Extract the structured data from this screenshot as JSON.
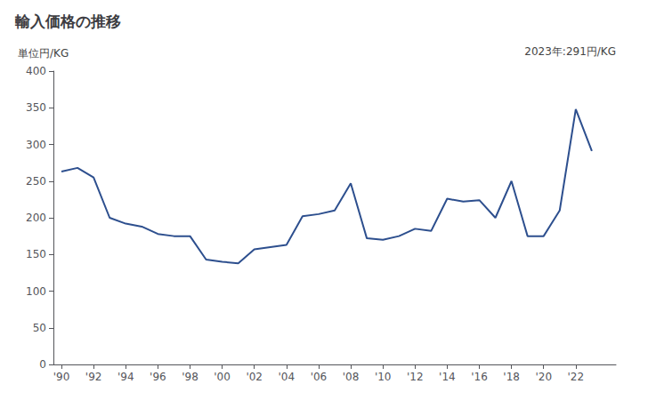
{
  "chart_data": {
    "type": "line",
    "title": "輸入価格の推移",
    "ylabel": "単位円/KG",
    "annotation": "2023年:291円/KG",
    "color": "#2d4f8e",
    "x": [
      1990,
      1991,
      1992,
      1993,
      1994,
      1995,
      1996,
      1997,
      1998,
      1999,
      2000,
      2001,
      2002,
      2003,
      2004,
      2005,
      2006,
      2007,
      2008,
      2009,
      2010,
      2011,
      2012,
      2013,
      2014,
      2015,
      2016,
      2017,
      2018,
      2019,
      2020,
      2021,
      2022,
      2023
    ],
    "values": [
      263,
      268,
      255,
      200,
      192,
      188,
      178,
      175,
      175,
      143,
      140,
      138,
      157,
      160,
      163,
      202,
      205,
      210,
      247,
      172,
      170,
      175,
      185,
      182,
      226,
      222,
      224,
      200,
      250,
      175,
      175,
      210,
      348,
      291
    ],
    "xlim": [
      1989.5,
      2024.5
    ],
    "xticks": [
      {
        "value": 1990,
        "label": "'90"
      },
      {
        "value": 1992,
        "label": "'92"
      },
      {
        "value": 1994,
        "label": "'94"
      },
      {
        "value": 1996,
        "label": "'96"
      },
      {
        "value": 1998,
        "label": "'98"
      },
      {
        "value": 2000,
        "label": "'00"
      },
      {
        "value": 2002,
        "label": "'02"
      },
      {
        "value": 2004,
        "label": "'04"
      },
      {
        "value": 2006,
        "label": "'06"
      },
      {
        "value": 2008,
        "label": "'08"
      },
      {
        "value": 2010,
        "label": "'10"
      },
      {
        "value": 2012,
        "label": "'12"
      },
      {
        "value": 2014,
        "label": "'14"
      },
      {
        "value": 2016,
        "label": "'16"
      },
      {
        "value": 2018,
        "label": "'18"
      },
      {
        "value": 2020,
        "label": "'20"
      },
      {
        "value": 2022,
        "label": "'22"
      }
    ],
    "ylim": [
      0,
      400
    ],
    "yticks": [
      0,
      50,
      100,
      150,
      200,
      250,
      300,
      350,
      400
    ],
    "grid": false
  }
}
